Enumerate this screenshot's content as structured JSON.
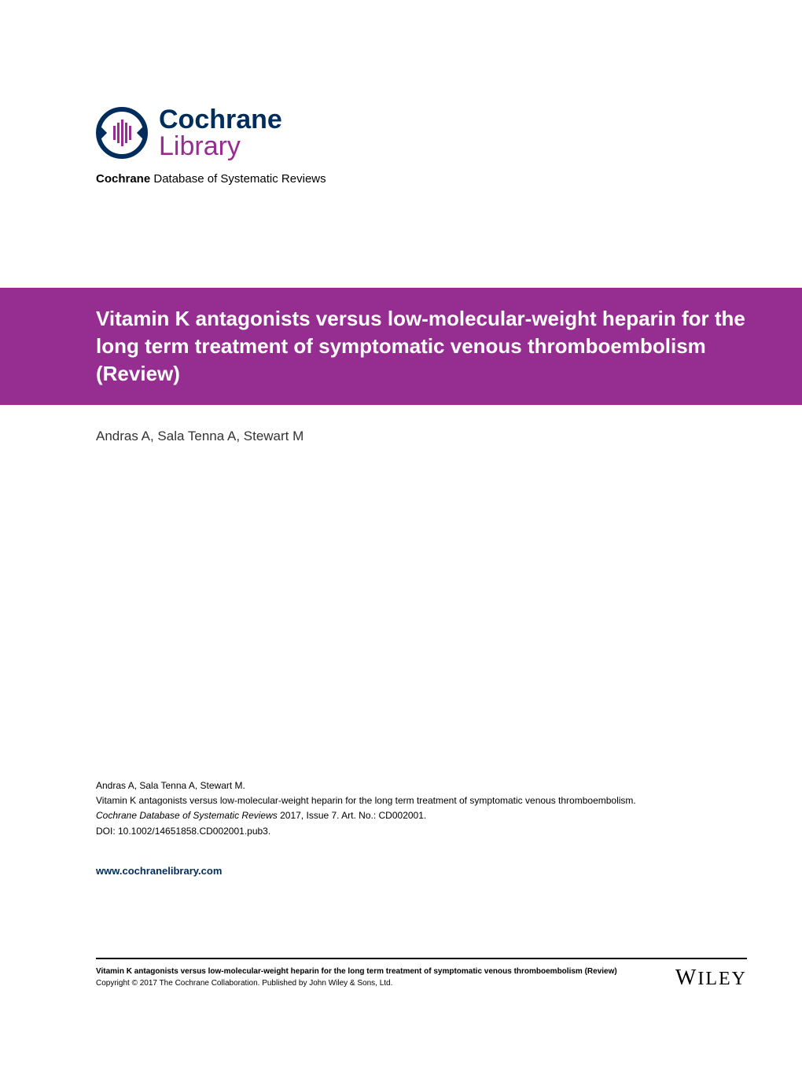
{
  "logo": {
    "brand_top": "Cochrane",
    "brand_bottom": "Library",
    "subtitle_bold": "Cochrane",
    "subtitle_rest": " Database of Systematic Reviews",
    "colors": {
      "navy": "#002d5c",
      "purple": "#962d91"
    }
  },
  "title": "Vitamin K antagonists versus low-molecular-weight heparin for the long term treatment of symptomatic venous thromboembolism (Review)",
  "authors": "Andras A, Sala Tenna A, Stewart M",
  "citation": {
    "authors_line": "Andras A, Sala Tenna A, Stewart M.",
    "title_line": "Vitamin K antagonists versus low-molecular-weight heparin for the long term treatment of symptomatic venous thromboembolism.",
    "journal": "Cochrane Database of Systematic Reviews",
    "issue_info": " 2017, Issue 7. Art. No.: CD002001.",
    "doi": "DOI: 10.1002/14651858.CD002001.pub3."
  },
  "website": "www.cochranelibrary.com",
  "footer": {
    "title_line": "Vitamin K antagonists versus low-molecular-weight heparin for the long term treatment of symptomatic venous thromboembolism (Review)",
    "copyright": "Copyright © 2017 The Cochrane Collaboration. Published by John Wiley & Sons, Ltd."
  },
  "publisher": "WILEY"
}
